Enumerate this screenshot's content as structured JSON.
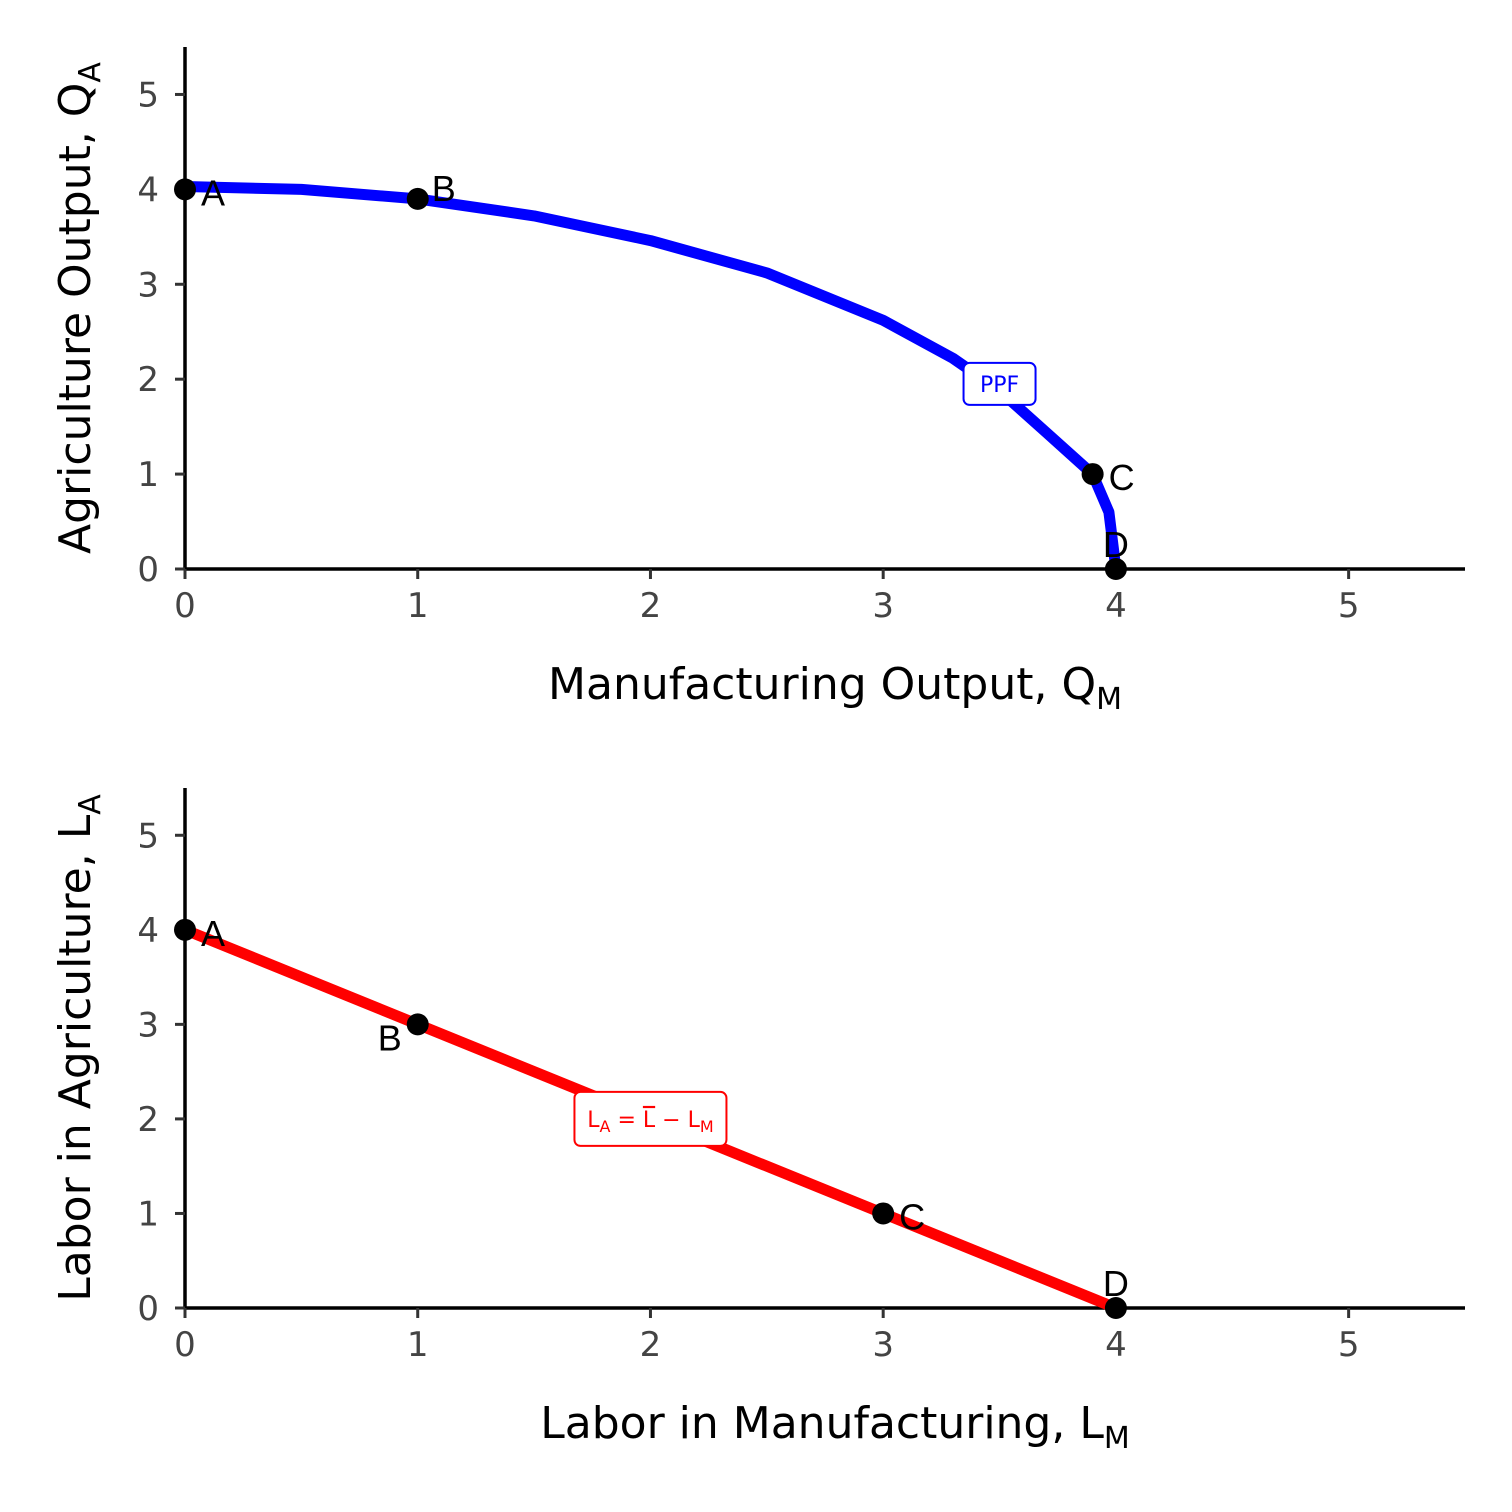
{
  "chart_data": [
    {
      "type": "line",
      "xlabel": "Manufacturing Output, ",
      "xlabel_sub": "M",
      "xlabel_sub_prefix": "Q",
      "ylabel": "Agriculture Output, ",
      "ylabel_sub_prefix": "Q",
      "ylabel_sub": "A",
      "xlim": [
        0,
        5.5
      ],
      "ylim": [
        0,
        5.5
      ],
      "x_ticks": [
        "0",
        "1",
        "2",
        "3",
        "4",
        "5"
      ],
      "y_ticks": [
        "0",
        "1",
        "2",
        "3",
        "4",
        "5"
      ],
      "grid": false,
      "series": [
        {
          "name": "PPF",
          "color": "#0000ff",
          "curve": "ppf",
          "x": [
            0,
            0.5,
            1,
            1.5,
            2,
            2.5,
            3,
            3.3,
            3.5,
            3.7,
            3.9,
            3.97,
            4
          ],
          "y": [
            4.03,
            4.0,
            3.9,
            3.72,
            3.46,
            3.12,
            2.62,
            2.22,
            1.88,
            1.44,
            1.0,
            0.6,
            0
          ]
        }
      ],
      "curve_label": {
        "text": "PPF",
        "color": "#0000ff",
        "x": 3.5,
        "y": 1.95
      },
      "points": [
        {
          "label": "A",
          "x": 0,
          "y": 4,
          "label_pos": "right"
        },
        {
          "label": "B",
          "x": 1,
          "y": 3.9,
          "label_pos": "upper-right"
        },
        {
          "label": "C",
          "x": 3.9,
          "y": 1,
          "label_pos": "right"
        },
        {
          "label": "D",
          "x": 4,
          "y": 0,
          "label_pos": "above"
        }
      ]
    },
    {
      "type": "line",
      "xlabel": "Labor in Manufacturing, ",
      "xlabel_sub_prefix": "L",
      "xlabel_sub": "M",
      "ylabel": "Labor in Agriculture, ",
      "ylabel_sub_prefix": "L",
      "ylabel_sub": "A",
      "xlim": [
        0,
        5.5
      ],
      "ylim": [
        0,
        5.5
      ],
      "x_ticks": [
        "0",
        "1",
        "2",
        "3",
        "4",
        "5"
      ],
      "y_ticks": [
        "0",
        "1",
        "2",
        "3",
        "4",
        "5"
      ],
      "grid": false,
      "series": [
        {
          "name": "L_A = L̄ − L_M",
          "color": "#ff0000",
          "curve": "line",
          "x": [
            0,
            4
          ],
          "y": [
            4,
            0
          ]
        }
      ],
      "curve_label": {
        "parts": [
          "L",
          "A",
          " = ",
          "L",
          " − L",
          "M"
        ],
        "color": "#ff0000",
        "x": 2.0,
        "y": 2.0
      },
      "points": [
        {
          "label": "A",
          "x": 0,
          "y": 4,
          "label_pos": "right"
        },
        {
          "label": "B",
          "x": 1,
          "y": 3,
          "label_pos": "lower-left"
        },
        {
          "label": "C",
          "x": 3,
          "y": 1,
          "label_pos": "right"
        },
        {
          "label": "D",
          "x": 4,
          "y": 0,
          "label_pos": "above"
        }
      ]
    }
  ]
}
